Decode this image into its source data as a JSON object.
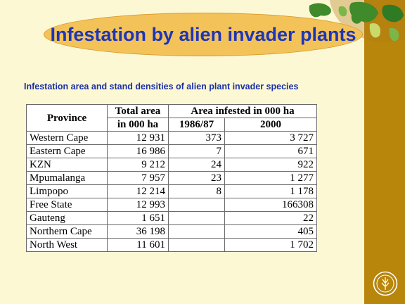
{
  "title": "Infestation by alien invader plants",
  "subtitle": "Infestation area and stand densities of alien plant invader species",
  "table": {
    "headers": {
      "province": "Province",
      "total_line1": "Total area",
      "total_line2": "in 000 ha",
      "infested": "Area infested in 000 ha",
      "year1": "1986/87",
      "year2": "2000"
    },
    "rows": [
      {
        "province": "Western Cape",
        "total": "12 931",
        "y1986": "373",
        "y2000": "3 727"
      },
      {
        "province": "Eastern Cape",
        "total": "16 986",
        "y1986": "7",
        "y2000": "671"
      },
      {
        "province": "KZN",
        "total": "9 212",
        "y1986": "24",
        "y2000": "922"
      },
      {
        "province": "Mpumalanga",
        "total": "7 957",
        "y1986": "23",
        "y2000": "1 277"
      },
      {
        "province": "Limpopo",
        "total": "12 214",
        "y1986": "8",
        "y2000": "1 178"
      },
      {
        "province": "Free State",
        "total": "12 993",
        "y1986": "",
        "y2000": "166308"
      },
      {
        "province": "Gauteng",
        "total": "1 651",
        "y1986": "",
        "y2000": "22"
      },
      {
        "province": "Northern Cape",
        "total": "36 198",
        "y1986": "",
        "y2000": "405"
      },
      {
        "province": "North West",
        "total": "11 601",
        "y1986": "",
        "y2000": "1 702"
      }
    ]
  },
  "colors": {
    "background": "#fdf8d4",
    "sidebar": "#b8860b",
    "title_oval": "#f3c35a",
    "title_text": "#1e35b8"
  },
  "icons": {
    "globe": "globe-map-icon",
    "logo": "fao-logo-icon"
  }
}
